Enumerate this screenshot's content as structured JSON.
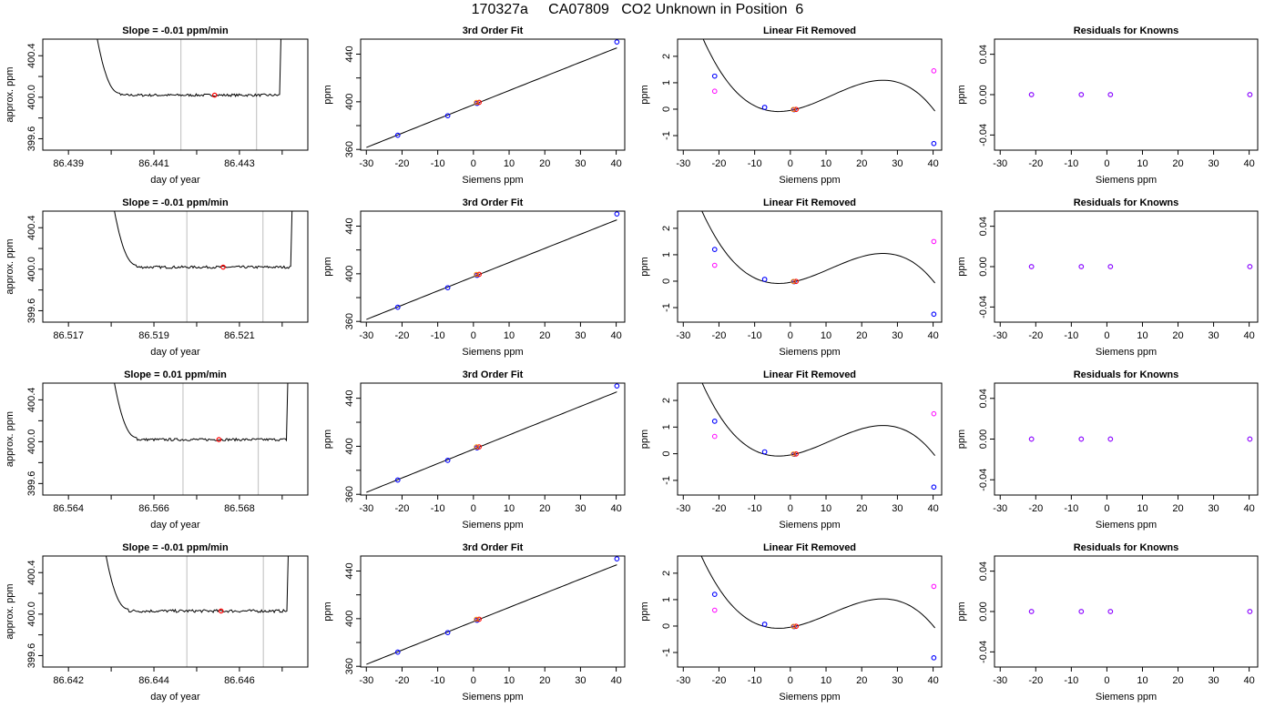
{
  "title": "170327a     CA07809   CO2 Unknown in Position  6",
  "colors": {
    "line": "#000000",
    "window": "#c8c8c8",
    "red": "#ff0000",
    "blue": "#0000ff",
    "magenta": "#ff00ff",
    "orange": "#ff8c00"
  },
  "chart_data": [
    {
      "type": "line",
      "row": 0,
      "title": "Slope =  -0.01  ppm/min",
      "xlabel": "day of year",
      "ylabel": "approx. ppm",
      "xlim": [
        86.4384,
        86.4446
      ],
      "ylim": [
        399.49,
        400.56
      ],
      "xticks": [
        "86.439",
        "86.441",
        "86.443"
      ],
      "yticks": [
        "399.6",
        "400.0",
        "400.4"
      ],
      "window": [
        86.44163,
        86.4434
      ],
      "mean_point": [
        86.44242,
        400.02
      ],
      "series_shape": {
        "start": 86.4396,
        "settle": 86.4402,
        "end": 86.44394,
        "level": 400.02,
        "noise": 0.012
      }
    },
    {
      "type": "scatter",
      "row": 0,
      "title": "3rd Order Fit",
      "xlabel": "Siemens ppm",
      "ylabel": "ppm",
      "xlim": [
        -31.6,
        42.4
      ],
      "ylim": [
        359.4,
        452.6
      ],
      "xticks": [
        "-30",
        "-20",
        "-10",
        "0",
        "10",
        "20",
        "30",
        "40"
      ],
      "yticks": [
        "360",
        "400",
        "440"
      ],
      "knowns": {
        "x": [
          -21.2,
          -7.2,
          1.0,
          40.2
        ],
        "y": [
          371.9,
          388.3,
          398.7,
          450.2
        ]
      },
      "unknown": {
        "x": 1.6,
        "y": 399.5
      }
    },
    {
      "type": "scatter",
      "row": 0,
      "title": "Linear Fit Removed",
      "xlabel": "Siemens ppm",
      "ylabel": "ppm",
      "xlim": [
        -31.6,
        42.4
      ],
      "ylim": [
        -1.55,
        2.65
      ],
      "xticks": [
        "-30",
        "-20",
        "-10",
        "0",
        "10",
        "20",
        "30",
        "40"
      ],
      "yticks": [
        "-1",
        "0",
        "1",
        "2"
      ],
      "knowns": {
        "x": [
          -21.2,
          -7.2,
          1.0,
          40.2
        ],
        "y": [
          1.25,
          0.07,
          -0.02,
          -1.3
        ]
      },
      "linear_resid": {
        "x": [
          -21.2,
          40.2
        ],
        "y": [
          0.68,
          1.45
        ]
      },
      "unknown": {
        "x": 1.6,
        "y": -0.01
      }
    },
    {
      "type": "scatter",
      "row": 0,
      "title": "Residuals for Knowns",
      "xlabel": "Siemens ppm",
      "ylabel": "ppm",
      "xlim": [
        -31.6,
        42.4
      ],
      "ylim": [
        -0.055,
        0.055
      ],
      "xticks": [
        "-30",
        "-20",
        "-10",
        "0",
        "10",
        "20",
        "30",
        "40"
      ],
      "yticks": [
        "-0.04",
        "0.00",
        "0.04"
      ],
      "knowns": {
        "x": [
          -21.2,
          -7.2,
          1.0,
          40.2
        ],
        "y": [
          0,
          0,
          0,
          0
        ]
      }
    },
    {
      "type": "line",
      "row": 1,
      "title": "Slope =  -0.01  ppm/min",
      "xlabel": "day of year",
      "ylabel": "approx. ppm",
      "xlim": [
        86.5164,
        86.5226
      ],
      "ylim": [
        399.49,
        400.56
      ],
      "xticks": [
        "86.517",
        "86.519",
        "86.521"
      ],
      "yticks": [
        "399.6",
        "400.0",
        "400.4"
      ],
      "window": [
        86.51977,
        86.52155
      ],
      "mean_point": [
        86.52062,
        400.02
      ],
      "series_shape": {
        "start": 86.518,
        "settle": 86.5186,
        "end": 86.5222,
        "level": 400.02,
        "noise": 0.012
      }
    },
    {
      "type": "scatter",
      "row": 1,
      "title": "3rd Order Fit",
      "xlabel": "Siemens ppm",
      "ylabel": "ppm",
      "xlim": [
        -31.6,
        42.4
      ],
      "ylim": [
        359.4,
        452.6
      ],
      "xticks": [
        "-30",
        "-20",
        "-10",
        "0",
        "10",
        "20",
        "30",
        "40"
      ],
      "yticks": [
        "360",
        "400",
        "440"
      ],
      "knowns": {
        "x": [
          -21.2,
          -7.2,
          1.0,
          40.2
        ],
        "y": [
          371.9,
          388.3,
          398.7,
          450.2
        ]
      },
      "unknown": {
        "x": 1.6,
        "y": 399.5
      }
    },
    {
      "type": "scatter",
      "row": 1,
      "title": "Linear Fit Removed",
      "xlabel": "Siemens ppm",
      "ylabel": "ppm",
      "xlim": [
        -31.6,
        42.4
      ],
      "ylim": [
        -1.55,
        2.65
      ],
      "xticks": [
        "-30",
        "-20",
        "-10",
        "0",
        "10",
        "20",
        "30",
        "40"
      ],
      "yticks": [
        "-1",
        "0",
        "1",
        "2"
      ],
      "knowns": {
        "x": [
          -21.2,
          -7.2,
          1.0,
          40.2
        ],
        "y": [
          1.2,
          0.07,
          -0.02,
          -1.25
        ]
      },
      "linear_resid": {
        "x": [
          -21.2,
          40.2
        ],
        "y": [
          0.6,
          1.5
        ]
      },
      "unknown": {
        "x": 1.6,
        "y": -0.01
      }
    },
    {
      "type": "scatter",
      "row": 1,
      "title": "Residuals for Knowns",
      "xlabel": "Siemens ppm",
      "ylabel": "ppm",
      "xlim": [
        -31.6,
        42.4
      ],
      "ylim": [
        -0.055,
        0.055
      ],
      "xticks": [
        "-30",
        "-20",
        "-10",
        "0",
        "10",
        "20",
        "30",
        "40"
      ],
      "yticks": [
        "-0.04",
        "0.00",
        "0.04"
      ],
      "knowns": {
        "x": [
          -21.2,
          -7.2,
          1.0,
          40.2
        ],
        "y": [
          0,
          0,
          0,
          0
        ]
      }
    },
    {
      "type": "line",
      "row": 2,
      "title": "Slope =  0.01  ppm/min",
      "xlabel": "day of year",
      "ylabel": "approx. ppm",
      "xlim": [
        86.5634,
        86.5696
      ],
      "ylim": [
        399.49,
        400.56
      ],
      "xticks": [
        "86.564",
        "86.566",
        "86.568"
      ],
      "yticks": [
        "399.6",
        "400.0",
        "400.4"
      ],
      "window": [
        86.56668,
        86.56844
      ],
      "mean_point": [
        86.56752,
        400.02
      ],
      "series_shape": {
        "start": 86.565,
        "settle": 86.5656,
        "end": 86.5691,
        "level": 400.02,
        "noise": 0.012
      }
    },
    {
      "type": "scatter",
      "row": 2,
      "title": "3rd Order Fit",
      "xlabel": "Siemens ppm",
      "ylabel": "ppm",
      "xlim": [
        -31.6,
        42.4
      ],
      "ylim": [
        359.4,
        452.6
      ],
      "xticks": [
        "-30",
        "-20",
        "-10",
        "0",
        "10",
        "20",
        "30",
        "40"
      ],
      "yticks": [
        "360",
        "400",
        "440"
      ],
      "knowns": {
        "x": [
          -21.2,
          -7.2,
          1.0,
          40.2
        ],
        "y": [
          371.9,
          388.3,
          398.7,
          450.2
        ]
      },
      "unknown": {
        "x": 1.6,
        "y": 399.5
      }
    },
    {
      "type": "scatter",
      "row": 2,
      "title": "Linear Fit Removed",
      "xlabel": "Siemens ppm",
      "ylabel": "ppm",
      "xlim": [
        -31.6,
        42.4
      ],
      "ylim": [
        -1.55,
        2.65
      ],
      "xticks": [
        "-30",
        "-20",
        "-10",
        "0",
        "10",
        "20",
        "30",
        "40"
      ],
      "yticks": [
        "-1",
        "0",
        "1",
        "2"
      ],
      "knowns": {
        "x": [
          -21.2,
          -7.2,
          1.0,
          40.2
        ],
        "y": [
          1.22,
          0.07,
          -0.02,
          -1.25
        ]
      },
      "linear_resid": {
        "x": [
          -21.2,
          40.2
        ],
        "y": [
          0.65,
          1.5
        ]
      },
      "unknown": {
        "x": 1.6,
        "y": -0.01
      }
    },
    {
      "type": "scatter",
      "row": 2,
      "title": "Residuals for Knowns",
      "xlabel": "Siemens ppm",
      "ylabel": "ppm",
      "xlim": [
        -31.6,
        42.4
      ],
      "ylim": [
        -0.055,
        0.055
      ],
      "xticks": [
        "-30",
        "-20",
        "-10",
        "0",
        "10",
        "20",
        "30",
        "40"
      ],
      "yticks": [
        "-0.04",
        "0.00",
        "0.04"
      ],
      "knowns": {
        "x": [
          -21.2,
          -7.2,
          1.0,
          40.2
        ],
        "y": [
          0,
          0,
          0,
          0
        ]
      }
    },
    {
      "type": "line",
      "row": 3,
      "title": "Slope =  -0.01  ppm/min",
      "xlabel": "day of year",
      "ylabel": "approx. ppm",
      "xlim": [
        86.6414,
        86.6476
      ],
      "ylim": [
        399.49,
        400.56
      ],
      "xticks": [
        "86.642",
        "86.644",
        "86.646"
      ],
      "yticks": [
        "399.6",
        "400.0",
        "400.4"
      ],
      "window": [
        86.64477,
        86.64656
      ],
      "mean_point": [
        86.64557,
        400.03
      ],
      "series_shape": {
        "start": 86.6428,
        "settle": 86.6434,
        "end": 86.64711,
        "level": 400.03,
        "noise": 0.014
      }
    },
    {
      "type": "scatter",
      "row": 3,
      "title": "3rd Order Fit",
      "xlabel": "Siemens ppm",
      "ylabel": "ppm",
      "xlim": [
        -31.6,
        42.4
      ],
      "ylim": [
        359.4,
        452.6
      ],
      "xticks": [
        "-30",
        "-20",
        "-10",
        "0",
        "10",
        "20",
        "30",
        "40"
      ],
      "yticks": [
        "360",
        "400",
        "440"
      ],
      "knowns": {
        "x": [
          -21.2,
          -7.2,
          1.0,
          40.2
        ],
        "y": [
          371.9,
          388.3,
          398.7,
          450.2
        ]
      },
      "unknown": {
        "x": 1.6,
        "y": 399.5
      }
    },
    {
      "type": "scatter",
      "row": 3,
      "title": "Linear Fit Removed",
      "xlabel": "Siemens ppm",
      "ylabel": "ppm",
      "xlim": [
        -31.6,
        42.4
      ],
      "ylim": [
        -1.55,
        2.65
      ],
      "xticks": [
        "-30",
        "-20",
        "-10",
        "0",
        "10",
        "20",
        "30",
        "40"
      ],
      "yticks": [
        "-1",
        "0",
        "1",
        "2"
      ],
      "knowns": {
        "x": [
          -21.2,
          -7.2,
          1.0,
          40.2
        ],
        "y": [
          1.2,
          0.07,
          -0.02,
          -1.2
        ]
      },
      "linear_resid": {
        "x": [
          -21.2,
          40.2
        ],
        "y": [
          0.6,
          1.5
        ]
      },
      "unknown": {
        "x": 1.6,
        "y": -0.01
      }
    },
    {
      "type": "scatter",
      "row": 3,
      "title": "Residuals for Knowns",
      "xlabel": "Siemens ppm",
      "ylabel": "ppm",
      "xlim": [
        -31.6,
        42.4
      ],
      "ylim": [
        -0.055,
        0.055
      ],
      "xticks": [
        "-30",
        "-20",
        "-10",
        "0",
        "10",
        "20",
        "30",
        "40"
      ],
      "yticks": [
        "-0.04",
        "0.00",
        "0.04"
      ],
      "knowns": {
        "x": [
          -21.2,
          -7.2,
          1.0,
          40.2
        ],
        "y": [
          0,
          0,
          0,
          0
        ]
      }
    }
  ]
}
